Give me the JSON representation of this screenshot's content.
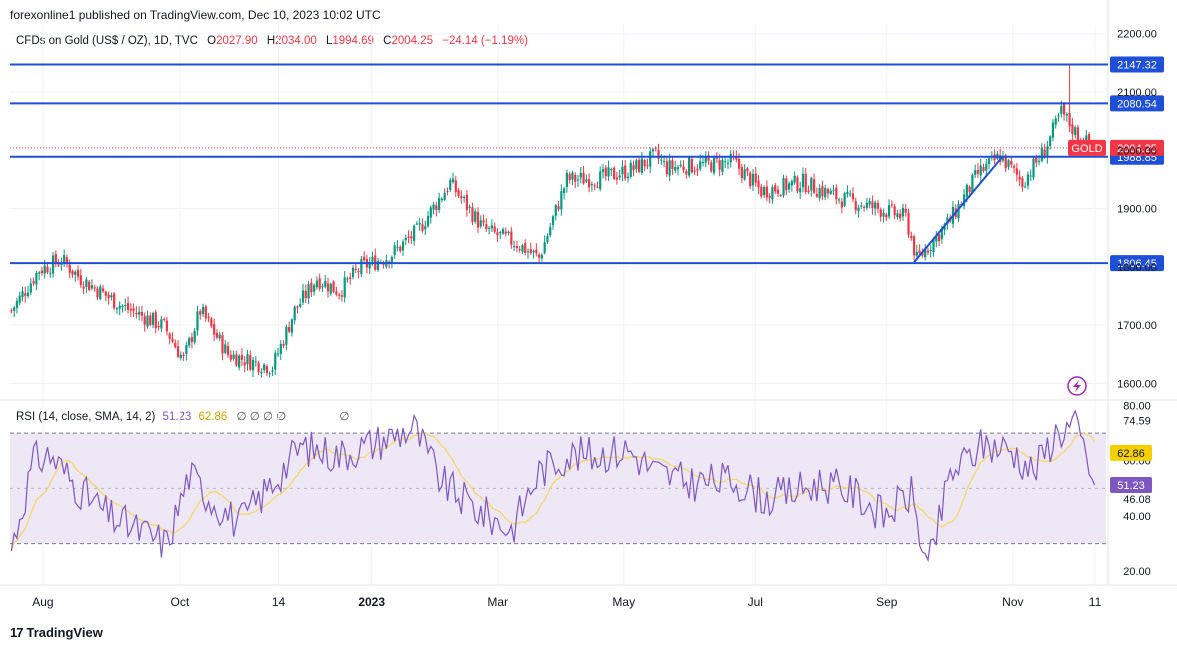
{
  "header": {
    "published": "forexonline1 published on TradingView.com, Dec 10, 2023 10:02 UTC"
  },
  "legend": {
    "symbol": "CFDs on Gold (US$ / OZ), 1D, TVC",
    "open_label": "O",
    "open": "2027.90",
    "high_label": "H",
    "high": "2034.00",
    "low_label": "L",
    "low": "1994.69",
    "close_label": "C",
    "close": "2004.25",
    "change": "−24.14 (−1.19%)"
  },
  "rsi_legend": {
    "label": "RSI (14, close, SMA, 14, 2)",
    "rsi_value": "51.23",
    "sma_value": "62.86",
    "empty_marks": "∅ ∅ ∅ ∅",
    "empty_mark2": "∅"
  },
  "footer": {
    "brand": "TradingView",
    "logo": "17"
  },
  "colors": {
    "up": "#089981",
    "down": "#f23645",
    "level": "#1e4fd8",
    "rsi": "#7e57c2",
    "rsi_sma": "#f5d76e",
    "band": "#ede7f6"
  },
  "chart_data": [
    {
      "type": "candlestick",
      "symbol": "GOLD",
      "x_ticks": [
        "Aug",
        "Oct",
        "14",
        "2023",
        "Mar",
        "May",
        "Jul",
        "Sep",
        "Nov",
        "11"
      ],
      "y_ticks": [
        1600,
        1700,
        1800,
        1900,
        2000,
        2100,
        2200
      ],
      "y_tick_labels": [
        "1600.00",
        "1700.00",
        "1800.00",
        "1900.00",
        "2000.00",
        "2100.00",
        "2200.00"
      ],
      "ylim": [
        1575,
        2215
      ],
      "horizontal_levels": [
        {
          "value": 2147.32,
          "label": "2147.32"
        },
        {
          "value": 2080.54,
          "label": "2080.54"
        },
        {
          "value": 1988.85,
          "label": "1988.85"
        },
        {
          "value": 1806.45,
          "label": "1806.45"
        }
      ],
      "last_price": {
        "name": "GOLD",
        "value": 2004.25,
        "label": "2004.25"
      },
      "trendline": {
        "from": {
          "bar": 325,
          "price": 1808
        },
        "to": {
          "bar": 357,
          "price": 1990
        }
      },
      "anchors": [
        [
          0,
          1725
        ],
        [
          10,
          1795
        ],
        [
          18,
          1812
        ],
        [
          25,
          1780
        ],
        [
          40,
          1732
        ],
        [
          55,
          1698
        ],
        [
          62,
          1640
        ],
        [
          68,
          1725
        ],
        [
          78,
          1650
        ],
        [
          88,
          1635
        ],
        [
          94,
          1628
        ],
        [
          102,
          1725
        ],
        [
          110,
          1780
        ],
        [
          118,
          1758
        ],
        [
          126,
          1800
        ],
        [
          136,
          1818
        ],
        [
          146,
          1860
        ],
        [
          158,
          1944
        ],
        [
          170,
          1865
        ],
        [
          182,
          1840
        ],
        [
          190,
          1815
        ],
        [
          200,
          1950
        ],
        [
          212,
          1952
        ],
        [
          224,
          1968
        ],
        [
          232,
          1990
        ],
        [
          236,
          1970
        ],
        [
          248,
          1975
        ],
        [
          260,
          1980
        ],
        [
          270,
          1930
        ],
        [
          285,
          1945
        ],
        [
          298,
          1918
        ],
        [
          312,
          1900
        ],
        [
          322,
          1885
        ],
        [
          326,
          1812
        ],
        [
          338,
          1880
        ],
        [
          348,
          1960
        ],
        [
          356,
          1990
        ],
        [
          364,
          1945
        ],
        [
          372,
          2000
        ],
        [
          378,
          2065
        ],
        [
          385,
          2018
        ],
        [
          390,
          2005
        ]
      ]
    },
    {
      "type": "line",
      "name": "RSI",
      "y_ticks_labels": [
        "80.00",
        "74.59",
        "60.00",
        "46.08",
        "40.00",
        "20.00"
      ],
      "bands": [
        30,
        70
      ],
      "ylim": [
        15,
        82
      ],
      "rsi_current": 51.23,
      "sma_current": 62.86,
      "anchors": [
        [
          0,
          28
        ],
        [
          8,
          60
        ],
        [
          14,
          62
        ],
        [
          24,
          50
        ],
        [
          35,
          40
        ],
        [
          45,
          35
        ],
        [
          56,
          30
        ],
        [
          64,
          55
        ],
        [
          72,
          46
        ],
        [
          82,
          37
        ],
        [
          94,
          52
        ],
        [
          104,
          65
        ],
        [
          118,
          62
        ],
        [
          132,
          67
        ],
        [
          145,
          72
        ],
        [
          155,
          52
        ],
        [
          168,
          42
        ],
        [
          180,
          35
        ],
        [
          190,
          56
        ],
        [
          200,
          62
        ],
        [
          210,
          62
        ],
        [
          222,
          64
        ],
        [
          232,
          56
        ],
        [
          244,
          52
        ],
        [
          260,
          53
        ],
        [
          272,
          46
        ],
        [
          282,
          49
        ],
        [
          292,
          52
        ],
        [
          304,
          48
        ],
        [
          314,
          40
        ],
        [
          324,
          48
        ],
        [
          330,
          20
        ],
        [
          338,
          55
        ],
        [
          350,
          66
        ],
        [
          360,
          64
        ],
        [
          368,
          56
        ],
        [
          376,
          70
        ],
        [
          383,
          73
        ],
        [
          387,
          62
        ],
        [
          390,
          50
        ]
      ]
    }
  ]
}
